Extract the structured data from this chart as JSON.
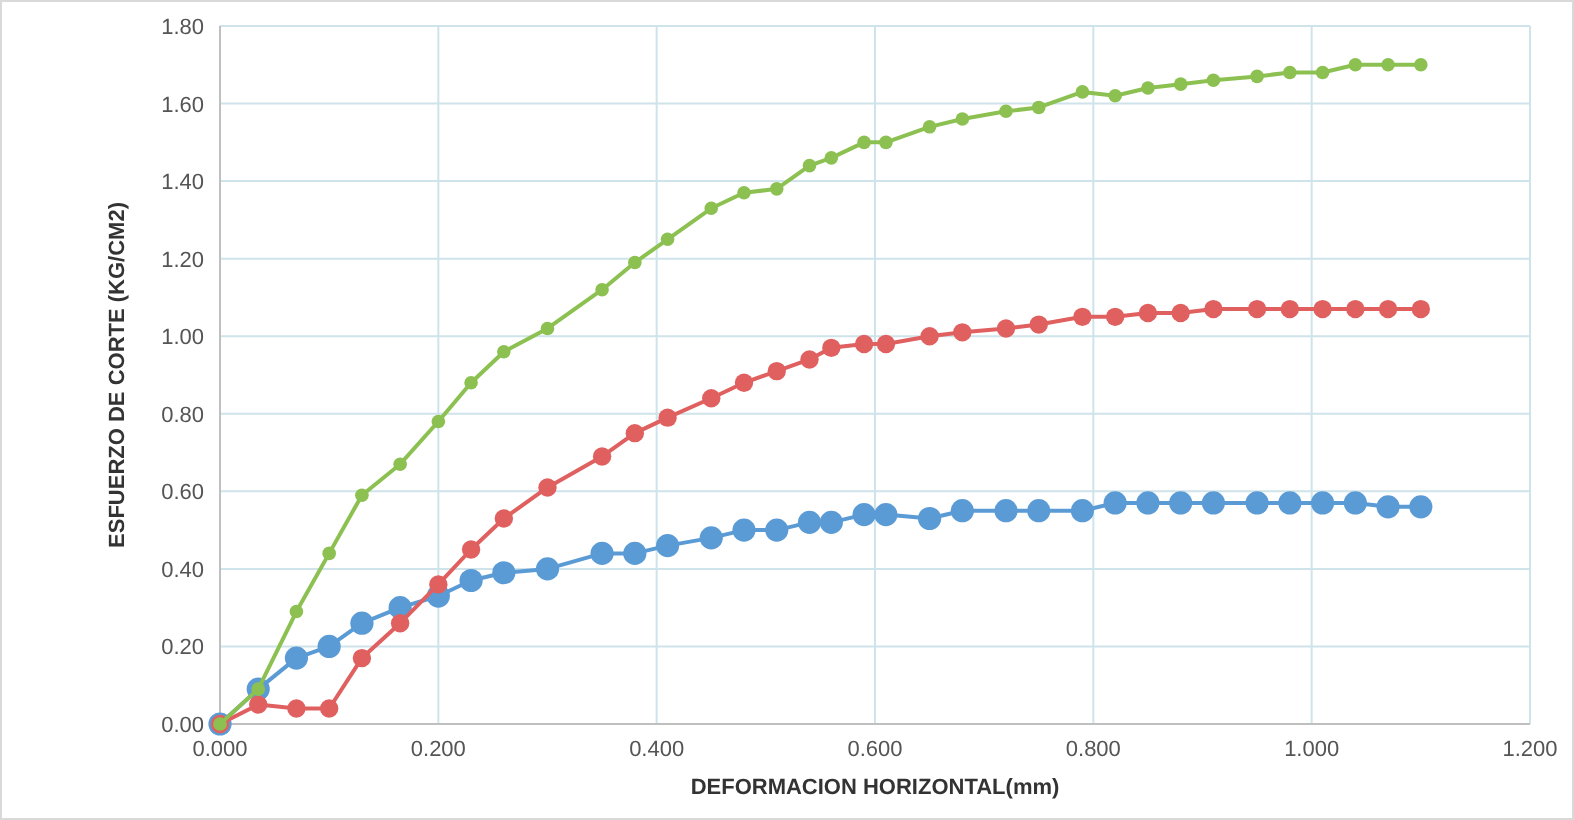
{
  "chart_data": {
    "type": "line",
    "xlabel": "DEFORMACION HORIZONTAL(mm)",
    "ylabel": "ESFUERZO DE CORTE (KG/CM2)",
    "x": [
      0,
      0.035,
      0.07,
      0.1,
      0.13,
      0.165,
      0.2,
      0.23,
      0.26,
      0.3,
      0.35,
      0.38,
      0.41,
      0.45,
      0.48,
      0.51,
      0.54,
      0.56,
      0.59,
      0.61,
      0.65,
      0.68,
      0.72,
      0.75,
      0.79,
      0.82,
      0.85,
      0.88,
      0.91,
      0.95,
      0.98,
      1.01,
      1.04,
      1.07,
      1.1
    ],
    "series": [
      {
        "color": "#8cc152",
        "values": [
          0,
          0.09,
          0.29,
          0.44,
          0.59,
          0.67,
          0.78,
          0.88,
          0.96,
          1.02,
          1.12,
          1.19,
          1.25,
          1.33,
          1.37,
          1.38,
          1.44,
          1.46,
          1.5,
          1.5,
          1.54,
          1.56,
          1.58,
          1.59,
          1.63,
          1.62,
          1.64,
          1.65,
          1.66,
          1.67,
          1.68,
          1.68,
          1.7,
          1.7,
          1.7
        ]
      },
      {
        "color": "#e06060",
        "values": [
          0,
          0.05,
          0.04,
          0.04,
          0.17,
          0.26,
          0.36,
          0.45,
          0.53,
          0.61,
          0.69,
          0.75,
          0.79,
          0.84,
          0.88,
          0.91,
          0.94,
          0.97,
          0.98,
          0.98,
          1.0,
          1.01,
          1.02,
          1.03,
          1.05,
          1.05,
          1.06,
          1.06,
          1.07,
          1.07,
          1.07,
          1.07,
          1.07,
          1.07,
          1.07
        ]
      },
      {
        "color": "#5b9bd5",
        "values": [
          0,
          0.09,
          0.17,
          0.2,
          0.26,
          0.3,
          0.33,
          0.37,
          0.39,
          0.4,
          0.44,
          0.44,
          0.46,
          0.48,
          0.5,
          0.5,
          0.52,
          0.52,
          0.54,
          0.54,
          0.53,
          0.55,
          0.55,
          0.55,
          0.55,
          0.57,
          0.57,
          0.57,
          0.57,
          0.57,
          0.57,
          0.57,
          0.57,
          0.56,
          0.56
        ]
      }
    ],
    "xlim": [
      0,
      1.2
    ],
    "xticks": [
      {
        "value": 0,
        "label": "0.000"
      },
      {
        "value": 0.2,
        "label": "0.200"
      },
      {
        "value": 0.4,
        "label": "0.400"
      },
      {
        "value": 0.6,
        "label": "0.600"
      },
      {
        "value": 0.8,
        "label": "0.800"
      },
      {
        "value": 1.0,
        "label": "1.000"
      },
      {
        "value": 1.2,
        "label": "1.200"
      }
    ],
    "ylim": [
      0,
      1.8
    ],
    "yticks": [
      {
        "value": 0,
        "label": "0.00"
      },
      {
        "value": 0.2,
        "label": "0.20"
      },
      {
        "value": 0.4,
        "label": "0.40"
      },
      {
        "value": 0.6,
        "label": "0.60"
      },
      {
        "value": 0.8,
        "label": "0.80"
      },
      {
        "value": 1.0,
        "label": "1.00"
      },
      {
        "value": 1.2,
        "label": "1.20"
      },
      {
        "value": 1.4,
        "label": "1.40"
      },
      {
        "value": 1.6,
        "label": "1.60"
      },
      {
        "value": 1.8,
        "label": "1.80"
      }
    ],
    "grid": true,
    "marker": "circle",
    "line_style": "solid"
  }
}
